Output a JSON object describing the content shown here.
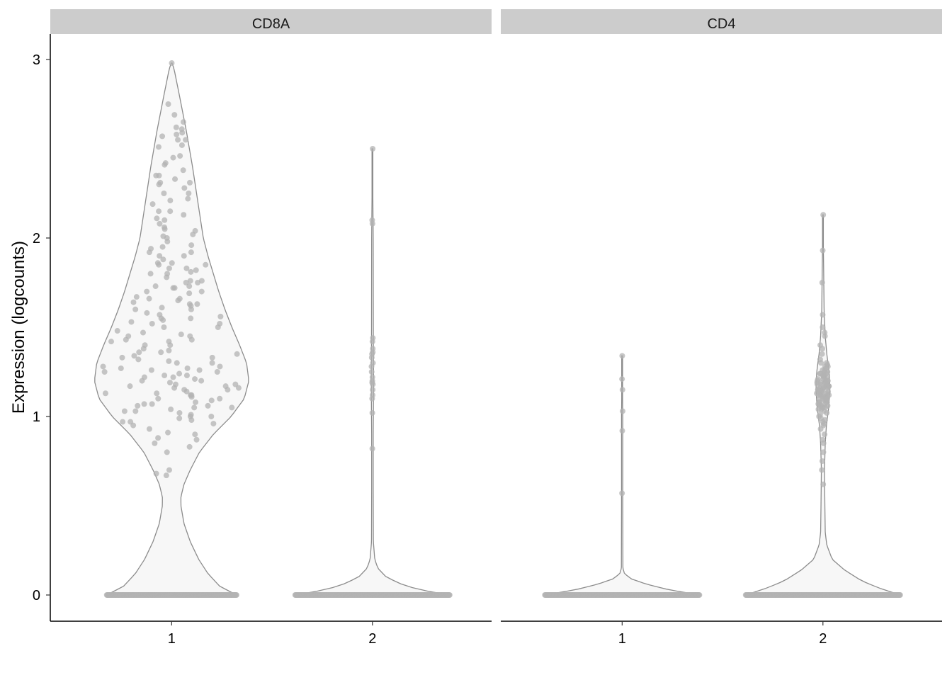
{
  "chart_data": {
    "type": "violin",
    "ylabel": "Expression (logcounts)",
    "yticks": [
      0,
      1,
      2,
      3
    ],
    "xticks": [
      "1",
      "2"
    ],
    "ylim": [
      -0.15,
      3.15
    ],
    "grid": false,
    "legend": "none",
    "colors": {
      "strip_bg": "#cccccc",
      "violin_fill": "#f7f7f7",
      "violin_stroke": "#8c8c8c",
      "point": "#b3b3b3"
    },
    "panels": [
      {
        "title": "CD8A",
        "groups": [
          {
            "x": "1",
            "max": 2.98,
            "density": [
              [
                0,
                0.84
              ],
              [
                0.05,
                0.62
              ],
              [
                0.12,
                0.47
              ],
              [
                0.2,
                0.35
              ],
              [
                0.3,
                0.24
              ],
              [
                0.4,
                0.16
              ],
              [
                0.5,
                0.12
              ],
              [
                0.55,
                0.12
              ],
              [
                0.62,
                0.16
              ],
              [
                0.7,
                0.24
              ],
              [
                0.8,
                0.36
              ],
              [
                0.9,
                0.54
              ],
              [
                1.0,
                0.77
              ],
              [
                1.1,
                0.94
              ],
              [
                1.2,
                1.0
              ],
              [
                1.3,
                0.97
              ],
              [
                1.4,
                0.88
              ],
              [
                1.5,
                0.78
              ],
              [
                1.6,
                0.69
              ],
              [
                1.7,
                0.61
              ],
              [
                1.8,
                0.54
              ],
              [
                1.9,
                0.47
              ],
              [
                2.0,
                0.41
              ],
              [
                2.2,
                0.34
              ],
              [
                2.4,
                0.27
              ],
              [
                2.6,
                0.19
              ],
              [
                2.8,
                0.1
              ],
              [
                2.95,
                0.03
              ],
              [
                2.98,
                0.0
              ]
            ],
            "nonzero": [
              2.98,
              2.75,
              2.69,
              2.65,
              2.62,
              2.58,
              2.57,
              2.59,
              2.55,
              2.52,
              2.46,
              2.42,
              2.38,
              2.35,
              2.33,
              2.31,
              2.3,
              2.28,
              2.25,
              2.22,
              2.19,
              2.15,
              2.13,
              2.1,
              2.08,
              2.06,
              2.04,
              2.02,
              2.0,
              1.98,
              1.96,
              1.94,
              1.92,
              1.9,
              1.88,
              1.86,
              1.85,
              1.83,
              1.81,
              1.8,
              1.78,
              1.76,
              1.75,
              1.73,
              1.72,
              1.7,
              1.69,
              1.67,
              1.66,
              1.64,
              1.63,
              1.61,
              1.6,
              1.58,
              1.57,
              1.55,
              1.54,
              1.52,
              1.5,
              1.48,
              1.47,
              1.45,
              1.43,
              1.42,
              1.4,
              1.38,
              1.36,
              1.34,
              1.33,
              1.31,
              1.3,
              1.28,
              1.27,
              1.26,
              1.25,
              1.24,
              1.23,
              1.22,
              1.21,
              1.2,
              1.19,
              1.18,
              1.17,
              1.16,
              1.15,
              1.14,
              1.13,
              1.12,
              1.11,
              1.1,
              1.09,
              1.08,
              1.07,
              1.06,
              1.05,
              1.04,
              1.03,
              1.02,
              1.01,
              1.0,
              0.99,
              0.98,
              0.97,
              0.96,
              0.95,
              0.93,
              0.91,
              0.9,
              0.88,
              0.87,
              0.85,
              0.83,
              0.8,
              0.7,
              0.68,
              0.67,
              1.2,
              1.25,
              1.3,
              1.35,
              1.15,
              1.1,
              1.22,
              1.28,
              1.32,
              1.18,
              1.12,
              1.05,
              1.0,
              1.4,
              1.45,
              1.5,
              1.55,
              1.6,
              1.65,
              1.7,
              1.75,
              1.8,
              1.85,
              1.9,
              1.95,
              2.05,
              2.15,
              2.25,
              2.35,
              2.45,
              2.55,
              1.62,
              1.72,
              1.82,
              1.92,
              1.52,
              1.42,
              1.37,
              1.27,
              1.17,
              1.07,
              0.97,
              1.23,
              1.13,
              1.03,
              1.33,
              1.43,
              1.53,
              1.63,
              1.73,
              1.83,
              2.01,
              2.11,
              2.21,
              2.31,
              2.41,
              2.51,
              2.61,
              1.26,
              1.16,
              1.06,
              1.36,
              1.46,
              1.56,
              1.66,
              1.76,
              1.86
            ],
            "zeros": 220
          },
          {
            "x": "2",
            "max": 2.5,
            "density": [
              [
                0,
                1.0
              ],
              [
                0.03,
                0.6
              ],
              [
                0.06,
                0.38
              ],
              [
                0.1,
                0.18
              ],
              [
                0.15,
                0.07
              ],
              [
                0.2,
                0.03
              ],
              [
                0.3,
                0.012
              ],
              [
                0.6,
                0.01
              ],
              [
                0.9,
                0.01
              ],
              [
                1.0,
                0.012
              ],
              [
                1.2,
                0.015
              ],
              [
                1.4,
                0.012
              ],
              [
                2.0,
                0.01
              ],
              [
                2.5,
                0.0
              ]
            ],
            "nonzero": [
              2.5,
              2.1,
              2.08,
              1.44,
              1.42,
              1.38,
              1.36,
              1.35,
              1.33,
              1.3,
              1.28,
              1.25,
              1.22,
              1.2,
              1.19,
              1.18,
              1.15,
              1.12,
              1.1,
              1.02,
              0.82
            ],
            "zeros": 260
          }
        ]
      },
      {
        "title": "CD4",
        "groups": [
          {
            "x": "1",
            "max": 1.34,
            "density": [
              [
                0,
                1.0
              ],
              [
                0.03,
                0.6
              ],
              [
                0.06,
                0.32
              ],
              [
                0.09,
                0.12
              ],
              [
                0.12,
                0.03
              ],
              [
                0.15,
                0.01
              ],
              [
                0.5,
                0.008
              ],
              [
                1.0,
                0.008
              ],
              [
                1.34,
                0.0
              ]
            ],
            "nonzero": [
              1.34,
              1.21,
              1.15,
              1.03,
              0.92,
              0.57
            ],
            "zeros": 260
          },
          {
            "x": "2",
            "max": 2.13,
            "density": [
              [
                0,
                1.0
              ],
              [
                0.04,
                0.72
              ],
              [
                0.08,
                0.5
              ],
              [
                0.14,
                0.28
              ],
              [
                0.2,
                0.12
              ],
              [
                0.28,
                0.05
              ],
              [
                0.35,
                0.03
              ],
              [
                0.5,
                0.025
              ],
              [
                0.7,
                0.02
              ],
              [
                0.85,
                0.03
              ],
              [
                0.95,
                0.045
              ],
              [
                1.05,
                0.075
              ],
              [
                1.15,
                0.09
              ],
              [
                1.25,
                0.08
              ],
              [
                1.35,
                0.05
              ],
              [
                1.45,
                0.03
              ],
              [
                1.6,
                0.015
              ],
              [
                1.8,
                0.01
              ],
              [
                2.13,
                0.0
              ]
            ],
            "nonzero": [
              2.13,
              1.93,
              1.75,
              1.57,
              1.5,
              1.47,
              1.45,
              1.4,
              1.38,
              1.35,
              1.32,
              1.3,
              1.3,
              1.29,
              1.28,
              1.28,
              1.27,
              1.26,
              1.25,
              1.25,
              1.24,
              1.24,
              1.23,
              1.22,
              1.22,
              1.21,
              1.2,
              1.2,
              1.19,
              1.19,
              1.18,
              1.18,
              1.17,
              1.17,
              1.16,
              1.16,
              1.15,
              1.15,
              1.14,
              1.14,
              1.13,
              1.13,
              1.12,
              1.12,
              1.11,
              1.11,
              1.1,
              1.1,
              1.09,
              1.09,
              1.08,
              1.08,
              1.07,
              1.07,
              1.06,
              1.06,
              1.05,
              1.05,
              1.04,
              1.04,
              1.03,
              1.02,
              1.01,
              1.0,
              0.99,
              0.98,
              0.97,
              0.96,
              0.95,
              0.93,
              0.9,
              0.87,
              0.85,
              0.8,
              0.75,
              0.7,
              0.62,
              1.16,
              1.18,
              1.14,
              1.2,
              1.12,
              1.22,
              1.1,
              1.24,
              1.08,
              1.26,
              1.06,
              1.13,
              1.15,
              1.17,
              1.19,
              1.11,
              1.09,
              1.21,
              1.23,
              1.07,
              1.05,
              1.16,
              1.14,
              1.18,
              1.12,
              1.2,
              1.1,
              1.19,
              1.13,
              1.15,
              1.17
            ],
            "zeros": 260
          }
        ]
      }
    ]
  }
}
